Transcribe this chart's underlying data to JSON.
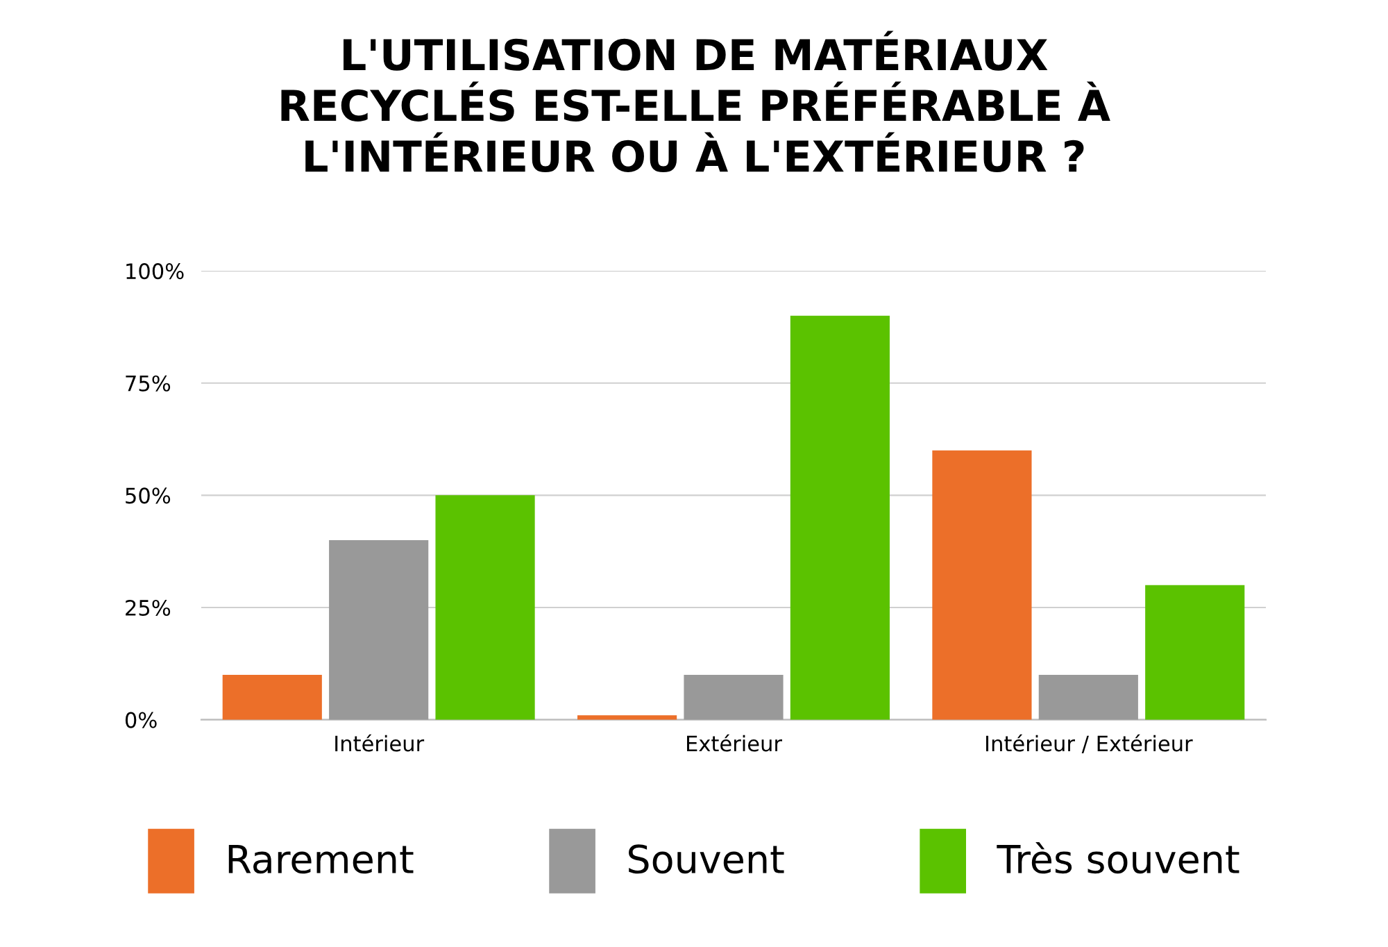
{
  "chart_data": {
    "type": "bar",
    "title": "L'UTILISATION DE MATÉRIAUX\nRECYCLÉS EST-ELLE PRÉFÉRABLE À\nL'INTÉRIEUR OU À L'EXTÉRIEUR ?",
    "categories": [
      "Intérieur",
      "Extérieur",
      "Intérieur / Extérieur"
    ],
    "series": [
      {
        "name": "Rarement",
        "color": "#ec6f29",
        "values": [
          10,
          1,
          60
        ]
      },
      {
        "name": "Souvent",
        "color": "#999999",
        "values": [
          40,
          10,
          10
        ]
      },
      {
        "name": "Très souvent",
        "color": "#5bc200",
        "values": [
          50,
          90,
          30
        ]
      }
    ],
    "ylim": [
      0,
      100
    ],
    "yticks": [
      {
        "value": 0,
        "label": "0%"
      },
      {
        "value": 25,
        "label": "25%"
      },
      {
        "value": 50,
        "label": "50%"
      },
      {
        "value": 75,
        "label": "75%"
      },
      {
        "value": 100,
        "label": "100%"
      }
    ],
    "grid": "y",
    "legend": "bottom"
  }
}
